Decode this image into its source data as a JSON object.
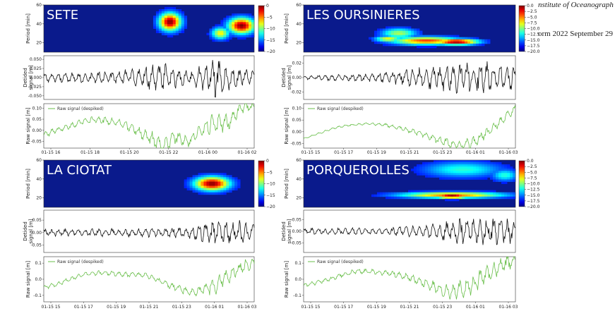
{
  "header": {
    "institute": "nstitute of Oceanograph",
    "date_fragment": "orm 2022 September 29"
  },
  "colors": {
    "heatmap_bg": "#0a1a8c",
    "detided": "#111111",
    "raw": "#6abf4b",
    "title_text": "#ffffff"
  },
  "colorbar": {
    "left_ticks": [
      "0",
      "−5",
      "−10",
      "−15",
      "−20"
    ],
    "right_ticks": [
      "0.0",
      "−2.5",
      "−5.0",
      "−7.5",
      "−10.0",
      "−12.5",
      "−15.0",
      "−17.5",
      "−20.0"
    ]
  },
  "chart_data": [
    {
      "station": "SETE",
      "type": "heatmap+line",
      "heatmap": {
        "ylabel": "Period [min]",
        "yticks": [
          20,
          40,
          60
        ],
        "ylim": [
          10,
          60
        ],
        "colorbar": "left",
        "blobs": [
          {
            "t": 0.6,
            "p": 42,
            "wt": 0.05,
            "wp": 9,
            "v": 1.0
          },
          {
            "t": 0.94,
            "p": 38,
            "wt": 0.06,
            "wp": 8,
            "v": 1.0
          },
          {
            "t": 0.84,
            "p": 30,
            "wt": 0.04,
            "wp": 6,
            "v": 0.6
          }
        ]
      },
      "detided": {
        "ylabel": "Detided\nsignal [m]",
        "yticks": [
          "0.050",
          "0.025",
          "0.000",
          "-0.025",
          "-0.050"
        ],
        "ylim": [
          -0.06,
          0.06
        ],
        "amp": [
          0.012,
          0.012,
          0.012,
          0.012,
          0.014,
          0.014,
          0.018,
          0.02,
          0.03,
          0.035,
          0.025,
          0.022,
          0.028,
          0.05,
          0.035,
          0.02,
          0.02
        ]
      },
      "raw": {
        "ylabel": "Raw signal [m]",
        "legend": "Raw signal (despiked)",
        "yticks": [
          "0.10",
          "0.05",
          "0.00",
          "-0.05"
        ],
        "ylim": [
          -0.08,
          0.12
        ],
        "keys": [
          -0.02,
          0.0,
          0.02,
          0.04,
          0.05,
          0.04,
          0.03,
          0.0,
          -0.03,
          -0.07,
          -0.03,
          -0.05,
          0.0,
          0.04,
          0.03,
          0.1,
          0.11
        ]
      },
      "xticks": [
        "01-15 16",
        "01-15 18",
        "01-15 20",
        "01-15 22",
        "01-16 00",
        "01-16 02"
      ]
    },
    {
      "station": "LES OURSINIERES",
      "type": "heatmap+line",
      "heatmap": {
        "ylabel": "Period [min]",
        "yticks": [
          20,
          40,
          60
        ],
        "ylim": [
          10,
          60
        ],
        "colorbar": "right",
        "blobs": [
          {
            "t": 0.58,
            "p": 22,
            "wt": 0.16,
            "wp": 4,
            "v": 0.8
          },
          {
            "t": 0.72,
            "p": 21,
            "wt": 0.1,
            "wp": 3,
            "v": 1.0
          },
          {
            "t": 0.45,
            "p": 30,
            "wt": 0.08,
            "wp": 5,
            "v": 0.5
          },
          {
            "t": 0.4,
            "p": 24,
            "wt": 0.06,
            "wp": 3,
            "v": 0.6
          }
        ]
      },
      "detided": {
        "ylabel": "Detided\nsignal [m]",
        "yticks": [
          "0.02",
          "0.00",
          "-0.02"
        ],
        "ylim": [
          -0.03,
          0.03
        ],
        "amp": [
          0.003,
          0.003,
          0.004,
          0.004,
          0.004,
          0.005,
          0.006,
          0.008,
          0.01,
          0.012,
          0.016,
          0.018,
          0.02,
          0.022,
          0.018,
          0.016,
          0.014
        ]
      },
      "raw": {
        "ylabel": "Raw signal [m]",
        "legend": "Raw signal (despiked)",
        "yticks": [
          "0.10",
          "0.05",
          "0.00",
          "-0.05"
        ],
        "ylim": [
          -0.07,
          0.12
        ],
        "keys": [
          -0.03,
          -0.01,
          0.01,
          0.025,
          0.03,
          0.035,
          0.03,
          0.02,
          0.005,
          -0.01,
          -0.03,
          -0.05,
          -0.06,
          -0.04,
          0.0,
          0.05,
          0.1
        ]
      },
      "xticks": [
        "01-15 15",
        "01-15 17",
        "01-15 19",
        "01-15 21",
        "01-15 23",
        "01-16 01",
        "01-16 03"
      ]
    },
    {
      "station": "LA CIOTAT",
      "type": "heatmap+line",
      "heatmap": {
        "ylabel": "Period [min]",
        "yticks": [
          20,
          40,
          60
        ],
        "ylim": [
          10,
          60
        ],
        "colorbar": "left",
        "blobs": [
          {
            "t": 0.8,
            "p": 35,
            "wt": 0.08,
            "wp": 7,
            "v": 1.0
          }
        ]
      },
      "detided": {
        "ylabel": "Detided\nsignal [m]",
        "yticks": [
          "0.05",
          "0.00",
          "-0.05"
        ],
        "ylim": [
          -0.08,
          0.09
        ],
        "amp": [
          0.012,
          0.012,
          0.012,
          0.012,
          0.014,
          0.014,
          0.014,
          0.014,
          0.016,
          0.016,
          0.02,
          0.022,
          0.03,
          0.05,
          0.04,
          0.04,
          0.035
        ]
      },
      "raw": {
        "ylabel": "Raw signal [m]",
        "legend": "Raw signal (despiked)",
        "yticks": [
          "0.1",
          "0.0",
          "-0.1"
        ],
        "ylim": [
          -0.14,
          0.14
        ],
        "keys": [
          -0.05,
          -0.03,
          0.0,
          0.03,
          0.04,
          0.04,
          0.03,
          0.03,
          0.02,
          -0.02,
          -0.05,
          -0.08,
          -0.07,
          -0.04,
          0.02,
          0.07,
          0.1
        ]
      },
      "xticks": [
        "01-15 15",
        "01-15 17",
        "01-15 19",
        "01-15 21",
        "01-15 23",
        "01-16 01",
        "01-16 03"
      ]
    },
    {
      "station": "PORQUEROLLES",
      "type": "heatmap+line",
      "heatmap": {
        "ylabel": "Period [min]",
        "yticks": [
          20,
          40,
          60
        ],
        "ylim": [
          10,
          60
        ],
        "colorbar": "right",
        "blobs": [
          {
            "t": 0.7,
            "p": 23,
            "wt": 0.24,
            "wp": 3,
            "v": 0.75
          },
          {
            "t": 0.7,
            "p": 22,
            "wt": 0.08,
            "wp": 2.5,
            "v": 1.0
          },
          {
            "t": 0.75,
            "p": 50,
            "wt": 0.18,
            "wp": 8,
            "v": 0.35
          },
          {
            "t": 0.95,
            "p": 44,
            "wt": 0.06,
            "wp": 6,
            "v": 0.35
          }
        ]
      },
      "detided": {
        "ylabel": "Detided\nsignal [m]",
        "yticks": [
          "0.05",
          "0.00",
          "-0.05"
        ],
        "ylim": [
          -0.09,
          0.09
        ],
        "amp": [
          0.012,
          0.012,
          0.012,
          0.012,
          0.014,
          0.014,
          0.016,
          0.018,
          0.02,
          0.025,
          0.03,
          0.04,
          0.05,
          0.055,
          0.05,
          0.05,
          0.045
        ]
      },
      "raw": {
        "ylabel": "Raw signal [m]",
        "legend": "Raw signal (despiked)",
        "yticks": [
          "0.1",
          "0.0",
          "-0.1"
        ],
        "ylim": [
          -0.14,
          0.14
        ],
        "keys": [
          -0.04,
          -0.02,
          0.0,
          0.03,
          0.05,
          0.05,
          0.04,
          0.03,
          0.01,
          -0.02,
          -0.05,
          -0.08,
          -0.06,
          -0.02,
          0.04,
          0.09,
          0.12
        ]
      },
      "xticks": [
        "01-15 15",
        "01-15 17",
        "01-15 19",
        "01-15 21",
        "01-15 23",
        "01-16 01",
        "01-16 03"
      ]
    }
  ]
}
